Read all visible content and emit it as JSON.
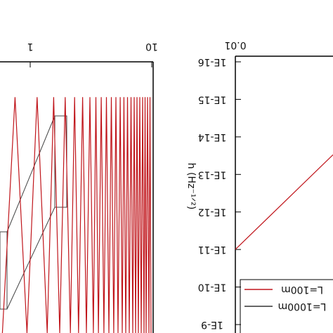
{
  "chart_data": [
    {
      "type": "line",
      "x": [
        0.59,
        0.75,
        0.94,
        1.14,
        1.38,
        1.56,
        1.75,
        1.94,
        2.14,
        2.32,
        2.5,
        2.7,
        2.9,
        3.1,
        3.31,
        3.47,
        3.64,
        3.84,
        4.04,
        4.24,
        4.44,
        4.65,
        4.87,
        5.07,
        5.28,
        5.5,
        5.72,
        5.9,
        6.11,
        6.32,
        6.53,
        6.75,
        6.98,
        7.17,
        7.36,
        7.56,
        7.76,
        7.97,
        8.19,
        8.41,
        8.64,
        8.81,
        8.99,
        9.23,
        9.48,
        9.67,
        9.87
      ],
      "series": [
        {
          "color": "#c0151b",
          "values": [
            0,
            1,
            0,
            1,
            0,
            1,
            0,
            1,
            0,
            1,
            0,
            1,
            0,
            1,
            0,
            1,
            0,
            1,
            0,
            1,
            0,
            1,
            0,
            1,
            0,
            1,
            0,
            1,
            0,
            1,
            0,
            1,
            0,
            1,
            0,
            1,
            0,
            1,
            0,
            1,
            0,
            1,
            0,
            1,
            0,
            1,
            0
          ]
        }
      ],
      "xlim": [
        0.56,
        10
      ],
      "xticks": [
        1,
        10
      ],
      "xscale": "log",
      "ylim": [
        0,
        1.15
      ]
    },
    {
      "type": "line",
      "ylabel": "h (Hz⁻¹ᐟ²)",
      "series": [
        {
          "name": "L=100m",
          "color": "#c0151b",
          "x": [
            0.01,
            0.1
          ],
          "values": [
            1e-11,
            3e-14
          ]
        },
        {
          "name": "L=1000m",
          "color": "#333333",
          "x": [],
          "values": []
        }
      ],
      "xlim": [
        0.01,
        0.1
      ],
      "xticks": [
        {
          "value": 0.01,
          "label": "0.01"
        }
      ],
      "xscale": "log",
      "ylim": [
        1e-16,
        1e-09
      ],
      "yscale": "log",
      "yticks": [
        {
          "value": 1e-16,
          "label": "1E-16"
        },
        {
          "value": 1e-15,
          "label": "1E-15"
        },
        {
          "value": 1e-14,
          "label": "1E-14"
        },
        {
          "value": 1e-13,
          "label": "1E-13"
        },
        {
          "value": 1e-12,
          "label": "1E-12"
        },
        {
          "value": 1e-11,
          "label": "1E-11"
        },
        {
          "value": 1e-10,
          "label": "1E-10"
        },
        {
          "value": 1e-09,
          "label": "1E-9"
        }
      ]
    }
  ]
}
